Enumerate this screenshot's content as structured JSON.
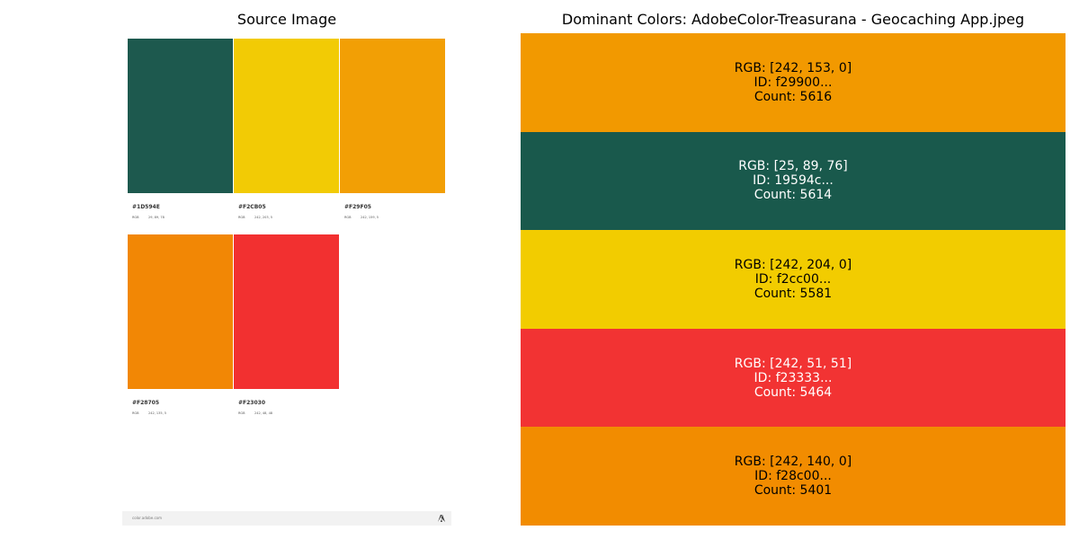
{
  "left_panel": {
    "title": "Source Image",
    "swatches": [
      {
        "hex": "#1D594E",
        "rgb_key": "RGB",
        "rgb_value": "29, 89, 78",
        "color": "#1d594e"
      },
      {
        "hex": "#F2CB05",
        "rgb_key": "RGB",
        "rgb_value": "242, 203, 5",
        "color": "#f2cb05"
      },
      {
        "hex": "#F29F05",
        "rgb_key": "RGB",
        "rgb_value": "242, 159, 5",
        "color": "#f29f05"
      },
      {
        "hex": "#F28705",
        "rgb_key": "RGB",
        "rgb_value": "242, 135, 5",
        "color": "#f28705"
      },
      {
        "hex": "#F23030",
        "rgb_key": "RGB",
        "rgb_value": "242, 48, 48",
        "color": "#f23030"
      }
    ],
    "footer_url": "color.adobe.com",
    "footer_logo": "adobe-logo-icon"
  },
  "chart_data": {
    "type": "bar",
    "title": "Dominant Colors: AdobeColor-Treasurana - Geocaching App.jpeg",
    "colors": [
      {
        "rgb": "RGB: [242, 153, 0]",
        "id": "ID: f29900...",
        "count": "Count: 5616",
        "count_value": 5616,
        "hex": "#f29900",
        "text_color": "#000000"
      },
      {
        "rgb": "RGB: [25, 89, 76]",
        "id": "ID: 19594c...",
        "count": "Count: 5614",
        "count_value": 5614,
        "hex": "#19594c",
        "text_color": "#ffffff"
      },
      {
        "rgb": "RGB: [242, 204, 0]",
        "id": "ID: f2cc00...",
        "count": "Count: 5581",
        "count_value": 5581,
        "hex": "#f2cc00",
        "text_color": "#000000"
      },
      {
        "rgb": "RGB: [242, 51, 51]",
        "id": "ID: f23333...",
        "count": "Count: 5464",
        "count_value": 5464,
        "hex": "#f23333",
        "text_color": "#ffffff"
      },
      {
        "rgb": "RGB: [242, 140, 0]",
        "id": "ID: f28c00...",
        "count": "Count: 5401",
        "count_value": 5401,
        "hex": "#f28c00",
        "text_color": "#000000"
      }
    ]
  }
}
